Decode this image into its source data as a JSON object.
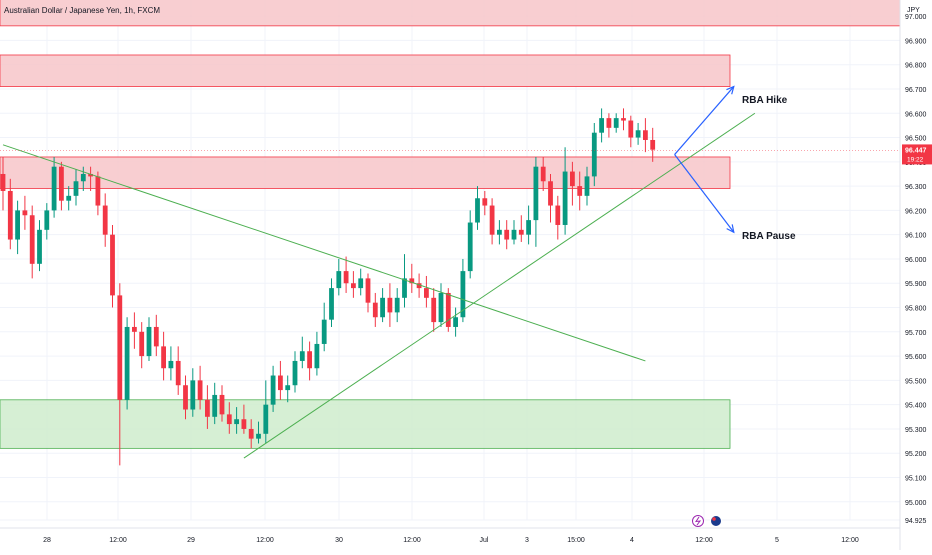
{
  "header": {
    "title": "Australian Dollar / Japanese Yen, 1h, FXCM"
  },
  "price_axis": {
    "currency": "JPY",
    "ticks": [
      "97.000",
      "96.900",
      "96.800",
      "96.700",
      "96.600",
      "96.500",
      "96.400",
      "96.300",
      "96.200",
      "96.100",
      "96.000",
      "95.900",
      "95.800",
      "95.700",
      "95.600",
      "95.500",
      "95.400",
      "95.300",
      "95.200",
      "95.100",
      "95.000",
      "94.925"
    ],
    "last_price": "96.447",
    "countdown": "19:22"
  },
  "time_axis": {
    "ticks": [
      "28",
      "12:00",
      "29",
      "12:00",
      "30",
      "12:00",
      "Jul",
      "3",
      "15:00",
      "4",
      "12:00",
      "5",
      "12:00"
    ]
  },
  "annotations": {
    "hike_label": "RBA Hike",
    "pause_label": "RBA Pause"
  },
  "colors": {
    "up": "#089981",
    "down": "#f23645",
    "resistance_fill": "#f7c5c9",
    "resistance_border": "#f23645",
    "support_fill": "#cfeccd",
    "support_border": "#4caf50",
    "trendline": "#4caf50",
    "arrow": "#2962ff",
    "grid": "#f0f3fa"
  },
  "chart_data": {
    "type": "candlestick",
    "title": "Australian Dollar / Japanese Yen, 1h, FXCM",
    "ylim": [
      94.925,
      97.05
    ],
    "zones": [
      {
        "kind": "resistance",
        "from": 96.96,
        "to": 97.12
      },
      {
        "kind": "resistance",
        "from": 96.71,
        "to": 96.84
      },
      {
        "kind": "resistance",
        "from": 96.29,
        "to": 96.42
      },
      {
        "kind": "support",
        "from": 95.22,
        "to": 95.42
      }
    ],
    "candles": [
      [
        96.35,
        96.28,
        96.42,
        96.2
      ],
      [
        96.28,
        96.08,
        96.33,
        96.04
      ],
      [
        96.08,
        96.2,
        96.24,
        96.02
      ],
      [
        96.2,
        96.18,
        96.26,
        96.12
      ],
      [
        96.18,
        95.98,
        96.22,
        95.92
      ],
      [
        95.98,
        96.12,
        96.16,
        95.95
      ],
      [
        96.12,
        96.2,
        96.23,
        96.08
      ],
      [
        96.2,
        96.38,
        96.42,
        96.17
      ],
      [
        96.38,
        96.24,
        96.4,
        96.2
      ],
      [
        96.24,
        96.26,
        96.3,
        96.2
      ],
      [
        96.26,
        96.32,
        96.37,
        96.22
      ],
      [
        96.32,
        96.35,
        96.38,
        96.28
      ],
      [
        96.35,
        96.34,
        96.38,
        96.28
      ],
      [
        96.34,
        96.22,
        96.36,
        96.18
      ],
      [
        96.22,
        96.1,
        96.27,
        96.05
      ],
      [
        96.1,
        95.85,
        96.14,
        95.8
      ],
      [
        95.85,
        95.42,
        95.9,
        95.15
      ],
      [
        95.42,
        95.72,
        95.76,
        95.38
      ],
      [
        95.72,
        95.7,
        95.78,
        95.63
      ],
      [
        95.7,
        95.6,
        95.74,
        95.55
      ],
      [
        95.6,
        95.72,
        95.76,
        95.58
      ],
      [
        95.72,
        95.64,
        95.77,
        95.6
      ],
      [
        95.64,
        95.55,
        95.7,
        95.5
      ],
      [
        95.55,
        95.58,
        95.64,
        95.5
      ],
      [
        95.58,
        95.48,
        95.64,
        95.44
      ],
      [
        95.48,
        95.38,
        95.52,
        95.34
      ],
      [
        95.38,
        95.5,
        95.55,
        95.35
      ],
      [
        95.5,
        95.42,
        95.56,
        95.38
      ],
      [
        95.42,
        95.35,
        95.48,
        95.3
      ],
      [
        95.35,
        95.44,
        95.49,
        95.32
      ],
      [
        95.44,
        95.36,
        95.48,
        95.33
      ],
      [
        95.36,
        95.32,
        95.41,
        95.28
      ],
      [
        95.32,
        95.34,
        95.39,
        95.28
      ],
      [
        95.34,
        95.3,
        95.4,
        95.28
      ],
      [
        95.3,
        95.26,
        95.34,
        95.22
      ],
      [
        95.26,
        95.28,
        95.33,
        95.24
      ],
      [
        95.28,
        95.4,
        95.5,
        95.24
      ],
      [
        95.4,
        95.52,
        95.56,
        95.37
      ],
      [
        95.52,
        95.46,
        95.58,
        95.42
      ],
      [
        95.46,
        95.48,
        95.52,
        95.41
      ],
      [
        95.48,
        95.58,
        95.62,
        95.45
      ],
      [
        95.58,
        95.62,
        95.68,
        95.55
      ],
      [
        95.62,
        95.55,
        95.66,
        95.5
      ],
      [
        95.55,
        95.65,
        95.7,
        95.52
      ],
      [
        95.65,
        95.75,
        95.82,
        95.62
      ],
      [
        95.75,
        95.88,
        95.92,
        95.72
      ],
      [
        95.88,
        95.95,
        96.0,
        95.85
      ],
      [
        95.95,
        95.9,
        96.01,
        95.86
      ],
      [
        95.9,
        95.88,
        95.95,
        95.84
      ],
      [
        95.88,
        95.92,
        95.96,
        95.85
      ],
      [
        95.92,
        95.82,
        95.94,
        95.78
      ],
      [
        95.82,
        95.76,
        95.86,
        95.72
      ],
      [
        95.76,
        95.84,
        95.88,
        95.74
      ],
      [
        95.84,
        95.78,
        95.9,
        95.72
      ],
      [
        95.78,
        95.84,
        95.88,
        95.74
      ],
      [
        95.84,
        95.92,
        96.02,
        95.8
      ],
      [
        95.92,
        95.9,
        95.98,
        95.86
      ],
      [
        95.9,
        95.88,
        95.94,
        95.84
      ],
      [
        95.88,
        95.84,
        95.93,
        95.8
      ],
      [
        95.84,
        95.74,
        95.88,
        95.7
      ],
      [
        95.74,
        95.86,
        95.9,
        95.72
      ],
      [
        95.86,
        95.72,
        95.88,
        95.7
      ],
      [
        95.72,
        95.76,
        95.8,
        95.68
      ],
      [
        95.76,
        95.95,
        96.0,
        95.74
      ],
      [
        95.95,
        96.15,
        96.2,
        95.92
      ],
      [
        96.15,
        96.25,
        96.3,
        96.12
      ],
      [
        96.25,
        96.22,
        96.28,
        96.18
      ],
      [
        96.22,
        96.1,
        96.25,
        96.06
      ],
      [
        96.1,
        96.12,
        96.16,
        96.06
      ],
      [
        96.12,
        96.08,
        96.16,
        96.04
      ],
      [
        96.08,
        96.12,
        96.16,
        96.06
      ],
      [
        96.12,
        96.1,
        96.18,
        96.07
      ],
      [
        96.1,
        96.16,
        96.22,
        96.06
      ],
      [
        96.16,
        96.38,
        96.42,
        96.05
      ],
      [
        96.38,
        96.32,
        96.42,
        96.28
      ],
      [
        96.32,
        96.22,
        96.35,
        96.15
      ],
      [
        96.22,
        96.14,
        96.26,
        96.08
      ],
      [
        96.14,
        96.36,
        96.46,
        96.1
      ],
      [
        96.36,
        96.3,
        96.4,
        96.22
      ],
      [
        96.3,
        96.26,
        96.36,
        96.2
      ],
      [
        96.26,
        96.34,
        96.38,
        96.22
      ],
      [
        96.34,
        96.52,
        96.56,
        96.3
      ],
      [
        96.52,
        96.58,
        96.62,
        96.48
      ],
      [
        96.58,
        96.54,
        96.6,
        96.5
      ],
      [
        96.54,
        96.58,
        96.6,
        96.52
      ],
      [
        96.58,
        96.57,
        96.62,
        96.53
      ],
      [
        96.57,
        96.5,
        96.59,
        96.46
      ],
      [
        96.5,
        96.53,
        96.56,
        96.47
      ],
      [
        96.53,
        96.49,
        96.58,
        96.44
      ],
      [
        96.49,
        96.45,
        96.54,
        96.4
      ]
    ],
    "trendlines": [
      {
        "from": [
          0,
          96.47
        ],
        "to": [
          88,
          95.58
        ]
      },
      {
        "from": [
          33,
          95.18
        ],
        "to": [
          103,
          96.6
        ]
      }
    ],
    "arrows": [
      {
        "from": [
          92,
          96.43
        ],
        "to": [
          96,
          96.71
        ],
        "label": "RBA Hike"
      },
      {
        "from": [
          92,
          96.43
        ],
        "to": [
          96,
          96.11
        ],
        "label": "RBA Pause"
      }
    ]
  }
}
